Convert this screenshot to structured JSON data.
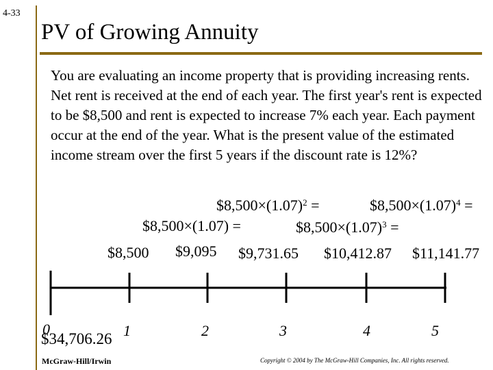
{
  "slide_number": "4-33",
  "title": "PV of Growing Annuity",
  "problem_text": "You are evaluating an income property that is providing increasing rents. Net rent is received at the end of each year. The first year's rent is expected to be $8,500 and rent is expected to increase 7% each year. Each payment occur at the end of the year. What is the present value of the estimated income stream over the first 5 years if the discount rate is 12%?",
  "formulas": {
    "year2": {
      "base": "$8,500×(1.07) =",
      "exponent": ""
    },
    "year3": {
      "base": "$8,500×(1.07)",
      "exponent": "2",
      "suffix": " ="
    },
    "year4": {
      "base": "$8,500×(1.07)",
      "exponent": "3",
      "suffix": " ="
    },
    "year5": {
      "base": "$8,500×(1.07)",
      "exponent": "4",
      "suffix": " ="
    }
  },
  "cash_flows": [
    "$8,500",
    "$9,095",
    "$9,731.65",
    "$10,412.87",
    "$11,141.77"
  ],
  "periods": [
    "0",
    "1",
    "2",
    "3",
    "4",
    "5"
  ],
  "present_value": "$34,706.26",
  "footer": {
    "publisher": "McGraw-Hill/Irwin",
    "copyright": "Copyright © 2004 by The McGraw-Hill Companies, Inc.  All rights reserved."
  },
  "colors": {
    "accent_rule": "#8b6914",
    "text": "#000000",
    "background": "#ffffff"
  }
}
